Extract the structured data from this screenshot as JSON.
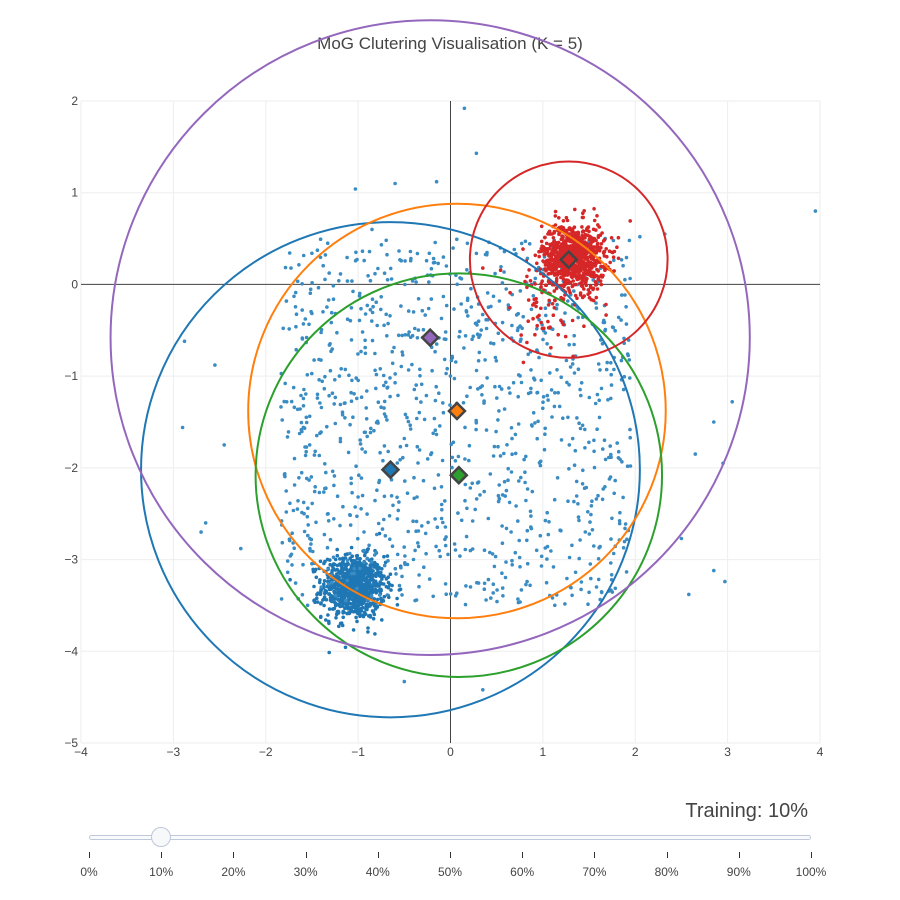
{
  "chart_data": {
    "type": "scatter",
    "title": "MoG Clutering Visualisation (K = 5)",
    "xlim": [
      -4,
      4
    ],
    "ylim": [
      -5,
      2
    ],
    "x_ticks": [
      -4,
      -3,
      -2,
      -1,
      0,
      1,
      2,
      3,
      4
    ],
    "y_ticks": [
      2,
      1,
      0,
      -1,
      -2,
      -3,
      -4,
      -5
    ],
    "x_tick_labels": [
      "−4",
      "−3",
      "−2",
      "−1",
      "0",
      "1",
      "2",
      "3",
      "4"
    ],
    "y_tick_labels": [
      "2",
      "1",
      "0",
      "−1",
      "−2",
      "−3",
      "−4",
      "−5"
    ],
    "grid": true,
    "zero_lines": true,
    "point_clouds": [
      {
        "color": "#1f77b4",
        "shape": "gaussian",
        "center": [
          -1.05,
          -3.3
        ],
        "spread": [
          0.17,
          0.17
        ],
        "count": 900
      },
      {
        "color": "#3a8cc3",
        "shape": "uniform",
        "xrange": [
          -1.85,
          1.95
        ],
        "yrange": [
          -3.5,
          0.5
        ],
        "count": 1100
      },
      {
        "color": "#d62728",
        "shape": "gaussian",
        "center": [
          1.33,
          0.3
        ],
        "spread": [
          0.17,
          0.18
        ],
        "count": 900
      },
      {
        "color": "#d62728",
        "shape": "gaussian",
        "center": [
          1.0,
          -0.3
        ],
        "spread": [
          0.3,
          0.3
        ],
        "count": 60
      }
    ],
    "outliers": [
      {
        "x": 0.15,
        "y": 1.92
      },
      {
        "x": 0.28,
        "y": 1.43
      },
      {
        "x": 3.95,
        "y": 0.8
      },
      {
        "x": -1.03,
        "y": 1.04
      },
      {
        "x": -0.6,
        "y": 1.1
      },
      {
        "x": -0.15,
        "y": 1.12
      },
      {
        "x": -2.88,
        "y": -0.62
      },
      {
        "x": -2.9,
        "y": -1.56
      },
      {
        "x": -2.55,
        "y": -0.88
      },
      {
        "x": -2.65,
        "y": -2.6
      },
      {
        "x": -2.7,
        "y": -2.7
      },
      {
        "x": -2.27,
        "y": -2.88
      },
      {
        "x": -2.45,
        "y": -1.75
      },
      {
        "x": 2.85,
        "y": -1.5
      },
      {
        "x": 2.95,
        "y": -1.95
      },
      {
        "x": 3.05,
        "y": -1.28
      },
      {
        "x": 2.65,
        "y": -1.85
      },
      {
        "x": 2.5,
        "y": -2.77
      },
      {
        "x": 2.58,
        "y": -3.38
      },
      {
        "x": 2.85,
        "y": -3.12
      },
      {
        "x": 2.97,
        "y": -3.24
      },
      {
        "x": 0.35,
        "y": -4.42
      },
      {
        "x": -0.5,
        "y": -4.33
      },
      {
        "x": 2.05,
        "y": 0.52
      },
      {
        "x": 2.32,
        "y": 0.55
      },
      {
        "x": 1.85,
        "y": -0.83
      },
      {
        "x": -0.85,
        "y": 0.6
      }
    ],
    "components": [
      {
        "color": "#1f77b4",
        "mean": [
          -0.65,
          -2.02
        ],
        "radius": 2.7
      },
      {
        "color": "#ff7f0e",
        "mean": [
          0.07,
          -1.38
        ],
        "radius": 2.26
      },
      {
        "color": "#2ca02c",
        "mean": [
          0.09,
          -2.08
        ],
        "radius": 2.2
      },
      {
        "color": "#d62728",
        "mean": [
          1.28,
          0.27
        ],
        "radius": 1.07
      },
      {
        "color": "#9467bd",
        "mean": [
          -0.22,
          -0.58
        ],
        "radius": 3.46
      }
    ]
  },
  "slider": {
    "label": "Training: 10%",
    "active_index": 1,
    "steps": [
      "0%",
      "10%",
      "20%",
      "30%",
      "40%",
      "50%",
      "60%",
      "70%",
      "80%",
      "90%",
      "100%"
    ]
  }
}
